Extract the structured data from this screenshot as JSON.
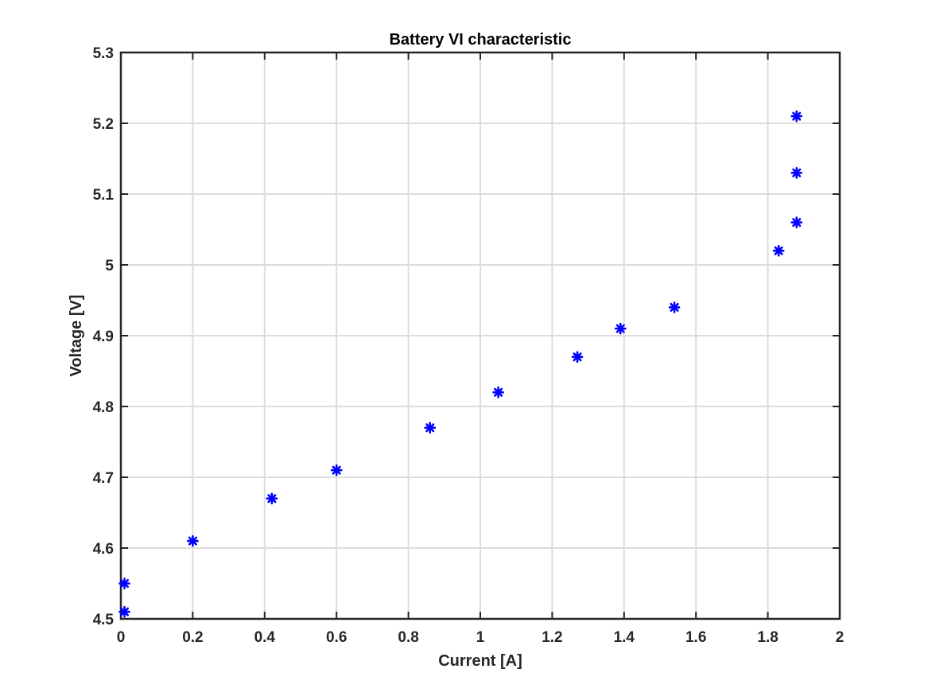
{
  "chart_data": {
    "type": "scatter",
    "title": "Battery VI characteristic",
    "xlabel": "Current [A]",
    "ylabel": "Voltage [V]",
    "xlim": [
      0,
      2
    ],
    "ylim": [
      4.5,
      5.3
    ],
    "xticks": [
      0,
      0.2,
      0.4,
      0.6,
      0.8,
      1,
      1.2,
      1.4,
      1.6,
      1.8,
      2
    ],
    "xtick_labels": [
      "0",
      "0.2",
      "0.4",
      "0.6",
      "0.8",
      "1",
      "1.2",
      "1.4",
      "1.6",
      "1.8",
      "2"
    ],
    "yticks": [
      4.5,
      4.6,
      4.7,
      4.8,
      4.9,
      5.0,
      5.1,
      5.2,
      5.3
    ],
    "ytick_labels": [
      "4.5",
      "4.6",
      "4.7",
      "4.8",
      "4.9",
      "5",
      "5.1",
      "5.2",
      "5.3"
    ],
    "grid": true,
    "marker": "asterisk",
    "marker_color": "#0000ff",
    "series": [
      {
        "x": [
          0.01,
          0.01,
          0.2,
          0.42,
          0.6,
          0.86,
          1.05,
          1.27,
          1.39,
          1.54,
          1.83,
          1.88,
          1.88,
          1.88
        ],
        "y": [
          4.51,
          4.55,
          4.61,
          4.67,
          4.71,
          4.77,
          4.82,
          4.87,
          4.91,
          4.94,
          5.02,
          5.06,
          5.13,
          5.21
        ]
      }
    ]
  }
}
